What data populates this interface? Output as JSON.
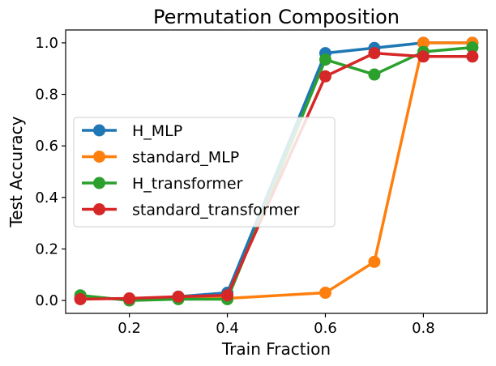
{
  "chart_data": {
    "type": "line",
    "title": "Permutation Composition",
    "xlabel": "Train Fraction",
    "ylabel": "Test Accuracy",
    "xlim": [
      0.07,
      0.93
    ],
    "ylim": [
      -0.05,
      1.05
    ],
    "xticks": [
      0.2,
      0.4,
      0.6,
      0.8
    ],
    "yticks": [
      0.0,
      0.2,
      0.4,
      0.6,
      0.8,
      1.0
    ],
    "x": [
      0.1,
      0.2,
      0.3,
      0.4,
      0.6,
      0.7,
      0.8,
      0.9
    ],
    "series": [
      {
        "name": "H_MLP",
        "color": "#1f77b4",
        "values": [
          0.01,
          0.005,
          0.015,
          0.03,
          0.96,
          0.98,
          1.0,
          1.0
        ]
      },
      {
        "name": "standard_MLP",
        "color": "#ff7f0e",
        "values": [
          0.01,
          0.005,
          0.01,
          0.008,
          0.03,
          0.15,
          1.0,
          1.0
        ]
      },
      {
        "name": "H_transformer",
        "color": "#2ca02c",
        "values": [
          0.02,
          0.0,
          0.005,
          0.005,
          0.935,
          0.877,
          0.965,
          0.982
        ]
      },
      {
        "name": "standard_transformer",
        "color": "#d62728",
        "values": [
          0.005,
          0.008,
          0.015,
          0.02,
          0.87,
          0.96,
          0.947,
          0.947
        ]
      }
    ],
    "grid": false,
    "legend_position": "center-left"
  }
}
